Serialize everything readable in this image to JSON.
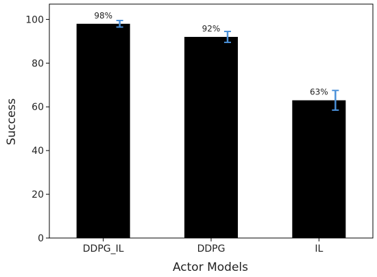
{
  "chart_data": {
    "type": "bar",
    "categories": [
      "DDPG_IL",
      "DDPG",
      "IL"
    ],
    "values": [
      98,
      92,
      63
    ],
    "error_low": [
      96.5,
      89.5,
      58.5
    ],
    "error_high": [
      99.5,
      94.5,
      67.5
    ],
    "data_labels": [
      "98%",
      "92%",
      "63%"
    ],
    "title": "",
    "xlabel": "Actor Models",
    "ylabel": "Success",
    "ylim": [
      0,
      107
    ],
    "yticks": [
      0,
      20,
      40,
      60,
      80,
      100
    ],
    "grid": false,
    "legend": "none",
    "bar_color": "#000000",
    "error_color": "#4a90d9"
  }
}
